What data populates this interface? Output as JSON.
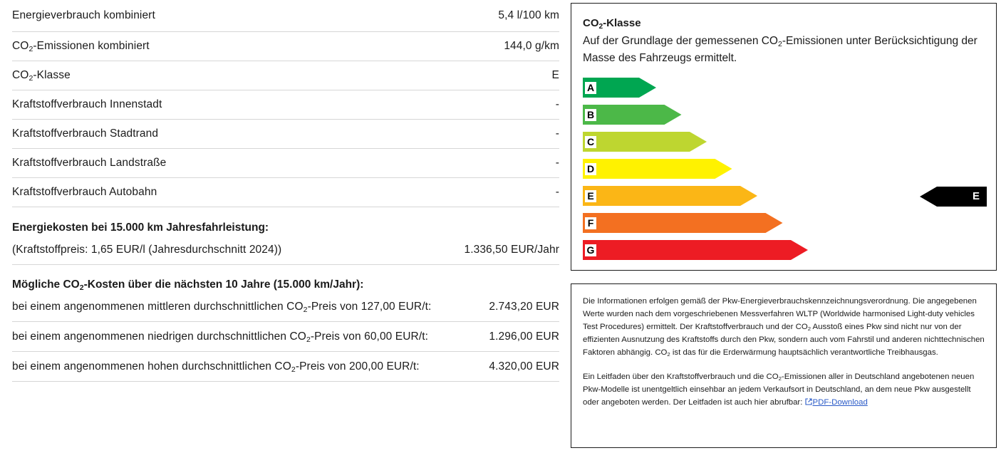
{
  "specs": [
    {
      "label": "Energieverbrauch kombiniert",
      "value": "5,4 l/100 km"
    },
    {
      "label_pre": "CO",
      "label_sub": "2",
      "label_post": "-Emissionen kombiniert",
      "value": "144,0 g/km"
    },
    {
      "label_pre": "CO",
      "label_sub": "2",
      "label_post": "-Klasse",
      "value": "E"
    },
    {
      "label": "Kraftstoffverbrauch Innenstadt",
      "value": "-"
    },
    {
      "label": "Kraftstoffverbrauch Stadtrand",
      "value": "-"
    },
    {
      "label": "Kraftstoffverbrauch Landstraße",
      "value": "-"
    },
    {
      "label": "Kraftstoffverbrauch Autobahn",
      "value": "-"
    }
  ],
  "energy_costs": {
    "heading": "Energiekosten bei 15.000 km Jahresfahrleistung:",
    "label": "(Kraftstoffpreis: 1,65 EUR/l (Jahresdurchschnitt 2024))",
    "value": "1.336,50 EUR/Jahr"
  },
  "co2_costs": {
    "heading_pre": "Mögliche CO",
    "heading_sub": "2",
    "heading_post": "-Kosten über die nächsten 10 Jahre (15.000 km/Jahr):",
    "rows": [
      {
        "label_pre": "bei einem angenommenen mittleren durchschnittlichen CO",
        "label_sub": "2",
        "label_post": "-Preis von 127,00 EUR/t:",
        "value": "2.743,20 EUR"
      },
      {
        "label_pre": "bei einem angenommenen niedrigen durchschnittlichen CO",
        "label_sub": "2",
        "label_post": "-Preis von 60,00 EUR/t:",
        "value": "1.296,00 EUR"
      },
      {
        "label_pre": "bei einem angenommenen hohen durchschnittlichen CO",
        "label_sub": "2",
        "label_post": "-Preis von 200,00 EUR/t:",
        "value": "4.320,00 EUR"
      }
    ]
  },
  "co2_class": {
    "title_pre": "CO",
    "title_sub": "2",
    "title_post": "-Klasse",
    "desc_pre": "Auf der Grundlage der gemessenen CO",
    "desc_sub": "2",
    "desc_post": "-Emissionen unter Berücksichtigung der Masse des Fahrzeugs ermittelt.",
    "classes": [
      {
        "letter": "A",
        "color": "#00a651"
      },
      {
        "letter": "B",
        "color": "#4cb848"
      },
      {
        "letter": "C",
        "color": "#bed630"
      },
      {
        "letter": "D",
        "color": "#fff200"
      },
      {
        "letter": "E",
        "color": "#fbb616"
      },
      {
        "letter": "F",
        "color": "#f37021"
      },
      {
        "letter": "G",
        "color": "#ed1c24"
      }
    ],
    "current": "E",
    "pointer_color": "#000000"
  },
  "info": {
    "p1_a": "Die Informationen erfolgen gemäß der Pkw-Energieverbrauchskennzeichnungsverordnung. Die angegebenen Werte wurden nach dem vorgeschriebenen Messverfahren WLTP (Worldwide harmonised Light-duty vehicles Test Procedures) ermittelt. Der Kraftstoffverbrauch und der CO",
    "p1_sub1": "2",
    "p1_b": " Ausstoß eines Pkw sind nicht nur von der effizienten Ausnutzung des Kraftstoffs durch den Pkw, sondern auch vom Fahrstil und anderen nichttechnischen Faktoren abhängig. CO",
    "p1_sub2": "2",
    "p1_c": " ist das für die Erderwärmung hauptsächlich verantwortliche Treibhausgas.",
    "p2_a": "Ein Leitfaden über den Kraftstoffverbrauch und die CO",
    "p2_sub": "2",
    "p2_b": "-Emissionen aller in Deutschland angebotenen neuen Pkw-Modelle ist unentgeltlich einsehbar an jedem Verkaufsort in Deutschland, an dem neue Pkw ausgestellt oder angeboten werden. Der Leitfaden ist auch hier abrufbar: ",
    "link_label": "PDF-Download",
    "link_color": "#2a5ac7"
  }
}
